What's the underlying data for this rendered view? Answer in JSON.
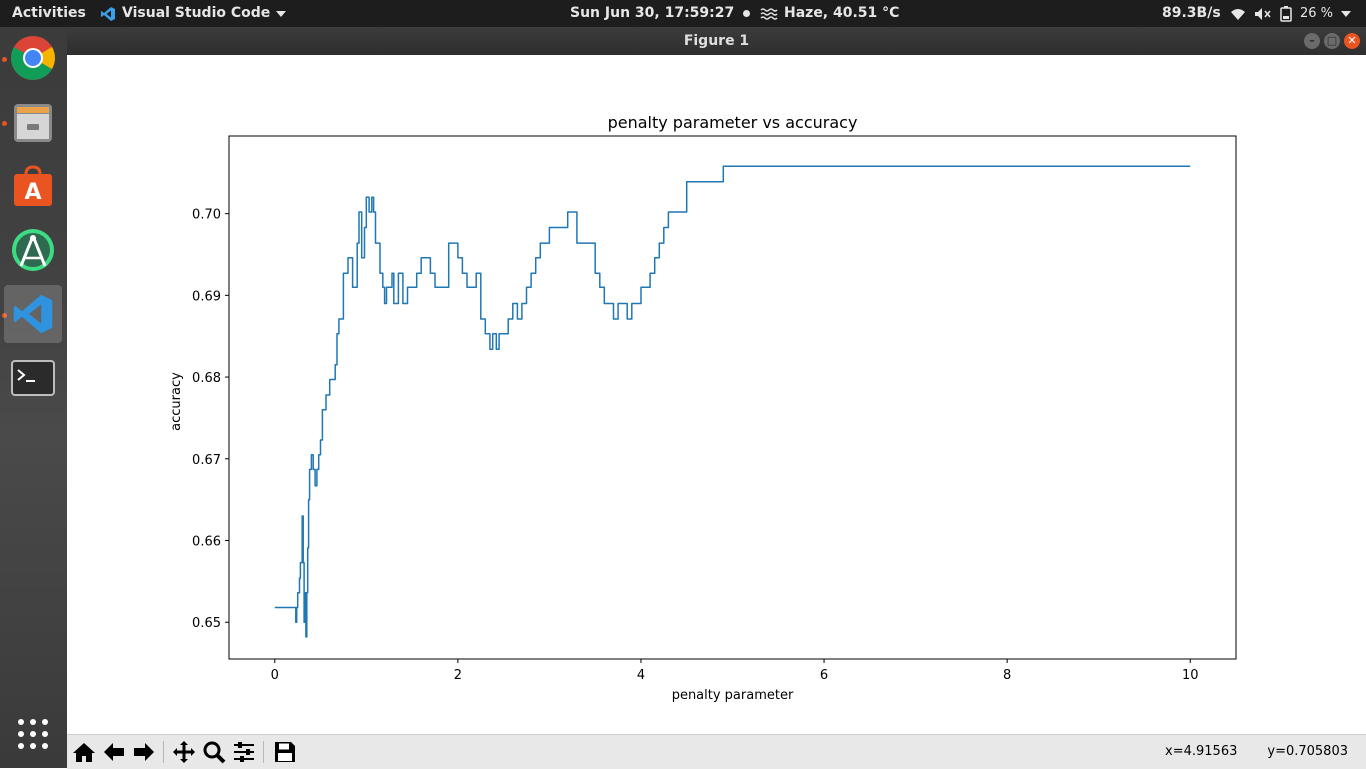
{
  "topbar": {
    "activities": "Activities",
    "app_name": "Visual Studio Code",
    "clock": "Sun Jun 30, 17:59:27",
    "weather": "Haze, 40.51 °C",
    "net_speed": "89.3B/s",
    "battery": "26 %"
  },
  "dock": {
    "items": [
      "chrome",
      "files",
      "software-center",
      "android-studio",
      "vscode",
      "terminal"
    ],
    "accent": "#e95420"
  },
  "window": {
    "title": "Figure 1"
  },
  "toolbar": {
    "coord_x": "x=4.91563",
    "coord_y": "y=0.705803"
  },
  "chart_data": {
    "type": "line",
    "title": "penalty parameter vs accuracy",
    "xlabel": "penalty parameter",
    "ylabel": "accuracy",
    "xlim": [
      -0.5,
      10.5
    ],
    "ylim": [
      0.6455,
      0.7095
    ],
    "xticks": [
      0,
      2,
      4,
      6,
      8,
      10
    ],
    "xtick_labels": [
      "0",
      "2",
      "4",
      "6",
      "8",
      "10"
    ],
    "yticks": [
      0.65,
      0.66,
      0.67,
      0.68,
      0.69,
      0.7
    ],
    "ytick_labels": [
      "0.65",
      "0.66",
      "0.67",
      "0.68",
      "0.69",
      "0.70"
    ],
    "grid": false,
    "line_color": "#1f77b4",
    "x": [
      0.0,
      0.22,
      0.23,
      0.24,
      0.25,
      0.27,
      0.28,
      0.3,
      0.31,
      0.32,
      0.33,
      0.34,
      0.35,
      0.36,
      0.37,
      0.38,
      0.4,
      0.42,
      0.44,
      0.46,
      0.48,
      0.5,
      0.52,
      0.54,
      0.56,
      0.58,
      0.6,
      0.62,
      0.64,
      0.66,
      0.68,
      0.7,
      0.75,
      0.8,
      0.85,
      0.9,
      0.92,
      0.95,
      0.98,
      1.0,
      1.03,
      1.06,
      1.08,
      1.1,
      1.12,
      1.15,
      1.18,
      1.2,
      1.22,
      1.25,
      1.28,
      1.3,
      1.35,
      1.4,
      1.45,
      1.5,
      1.55,
      1.6,
      1.65,
      1.7,
      1.75,
      1.8,
      1.9,
      2.0,
      2.05,
      2.1,
      2.15,
      2.2,
      2.25,
      2.3,
      2.35,
      2.38,
      2.42,
      2.45,
      2.5,
      2.55,
      2.6,
      2.65,
      2.7,
      2.75,
      2.8,
      2.85,
      2.9,
      3.0,
      3.1,
      3.2,
      3.3,
      3.4,
      3.5,
      3.55,
      3.6,
      3.7,
      3.75,
      3.8,
      3.85,
      3.9,
      4.0,
      4.05,
      4.1,
      4.15,
      4.2,
      4.25,
      4.3,
      4.4,
      4.5,
      4.8,
      4.9,
      5.2,
      6.0,
      8.0,
      10.0
    ],
    "y": [
      0.6518,
      0.6518,
      0.65,
      0.6518,
      0.6536,
      0.6554,
      0.6573,
      0.663,
      0.6573,
      0.65,
      0.6536,
      0.6482,
      0.6536,
      0.6591,
      0.665,
      0.6687,
      0.6705,
      0.6687,
      0.6667,
      0.6687,
      0.6705,
      0.6723,
      0.676,
      0.676,
      0.6778,
      0.6778,
      0.6797,
      0.6797,
      0.6797,
      0.6815,
      0.6853,
      0.6871,
      0.6927,
      0.6946,
      0.691,
      0.6964,
      0.7002,
      0.6946,
      0.6983,
      0.702,
      0.7002,
      0.702,
      0.7002,
      0.6964,
      0.6964,
      0.6927,
      0.691,
      0.689,
      0.691,
      0.691,
      0.6927,
      0.689,
      0.6927,
      0.689,
      0.691,
      0.691,
      0.6927,
      0.6946,
      0.6946,
      0.6927,
      0.691,
      0.691,
      0.6964,
      0.6946,
      0.6927,
      0.691,
      0.691,
      0.6927,
      0.6871,
      0.6853,
      0.6834,
      0.6853,
      0.6834,
      0.6853,
      0.6853,
      0.6871,
      0.689,
      0.6871,
      0.689,
      0.691,
      0.6927,
      0.6946,
      0.6964,
      0.6983,
      0.6983,
      0.7002,
      0.6964,
      0.6964,
      0.6927,
      0.691,
      0.689,
      0.6871,
      0.689,
      0.689,
      0.6871,
      0.689,
      0.691,
      0.691,
      0.6927,
      0.6946,
      0.6964,
      0.6983,
      0.7002,
      0.7002,
      0.7039,
      0.7039,
      0.7058,
      0.7058,
      0.7058,
      0.7058,
      0.7058
    ]
  }
}
